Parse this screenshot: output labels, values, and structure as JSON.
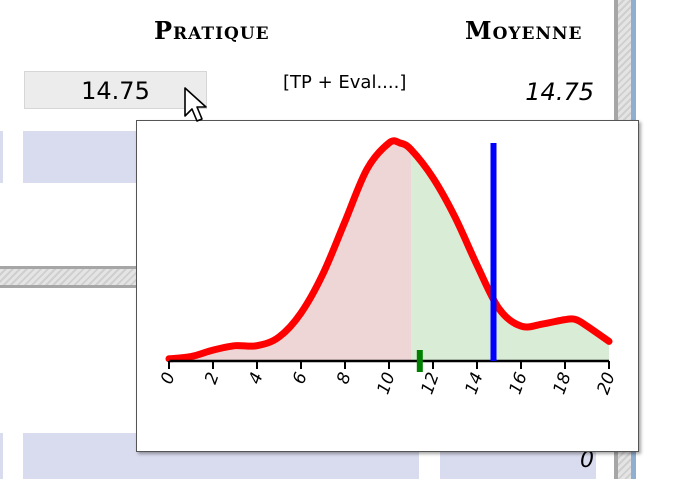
{
  "headers": {
    "pratique": "Pratique",
    "moyenne": "Moyenne"
  },
  "pratique_value": "14.75",
  "formula_label": "[TP + Eval....]",
  "moyenne_value": "14.75",
  "bottom_value": "0",
  "chart_data": {
    "type": "area",
    "x_ticks": [
      "0",
      "2",
      "4",
      "6",
      "8",
      "10",
      "12",
      "14",
      "16",
      "18",
      "20"
    ],
    "xlim": [
      0,
      20
    ],
    "curve_x": [
      0,
      1,
      2,
      3,
      4,
      5,
      6,
      7,
      8,
      9,
      10,
      10.5,
      11,
      12,
      13,
      14,
      15,
      16,
      17,
      18,
      18.5,
      19,
      20
    ],
    "curve_density": [
      0.01,
      0.02,
      0.05,
      0.07,
      0.07,
      0.11,
      0.22,
      0.4,
      0.64,
      0.88,
      1.0,
      1.0,
      0.97,
      0.84,
      0.66,
      0.44,
      0.24,
      0.16,
      0.17,
      0.19,
      0.19,
      0.16,
      0.09
    ],
    "split_x": 11,
    "student_score": 14.75,
    "class_median": 11.4,
    "colors": {
      "curve": "#ff0000",
      "below_fill": "#eed6d6",
      "above_fill": "#d9ecd6",
      "student_line": "#0000ff",
      "median_marker": "#008000"
    }
  }
}
